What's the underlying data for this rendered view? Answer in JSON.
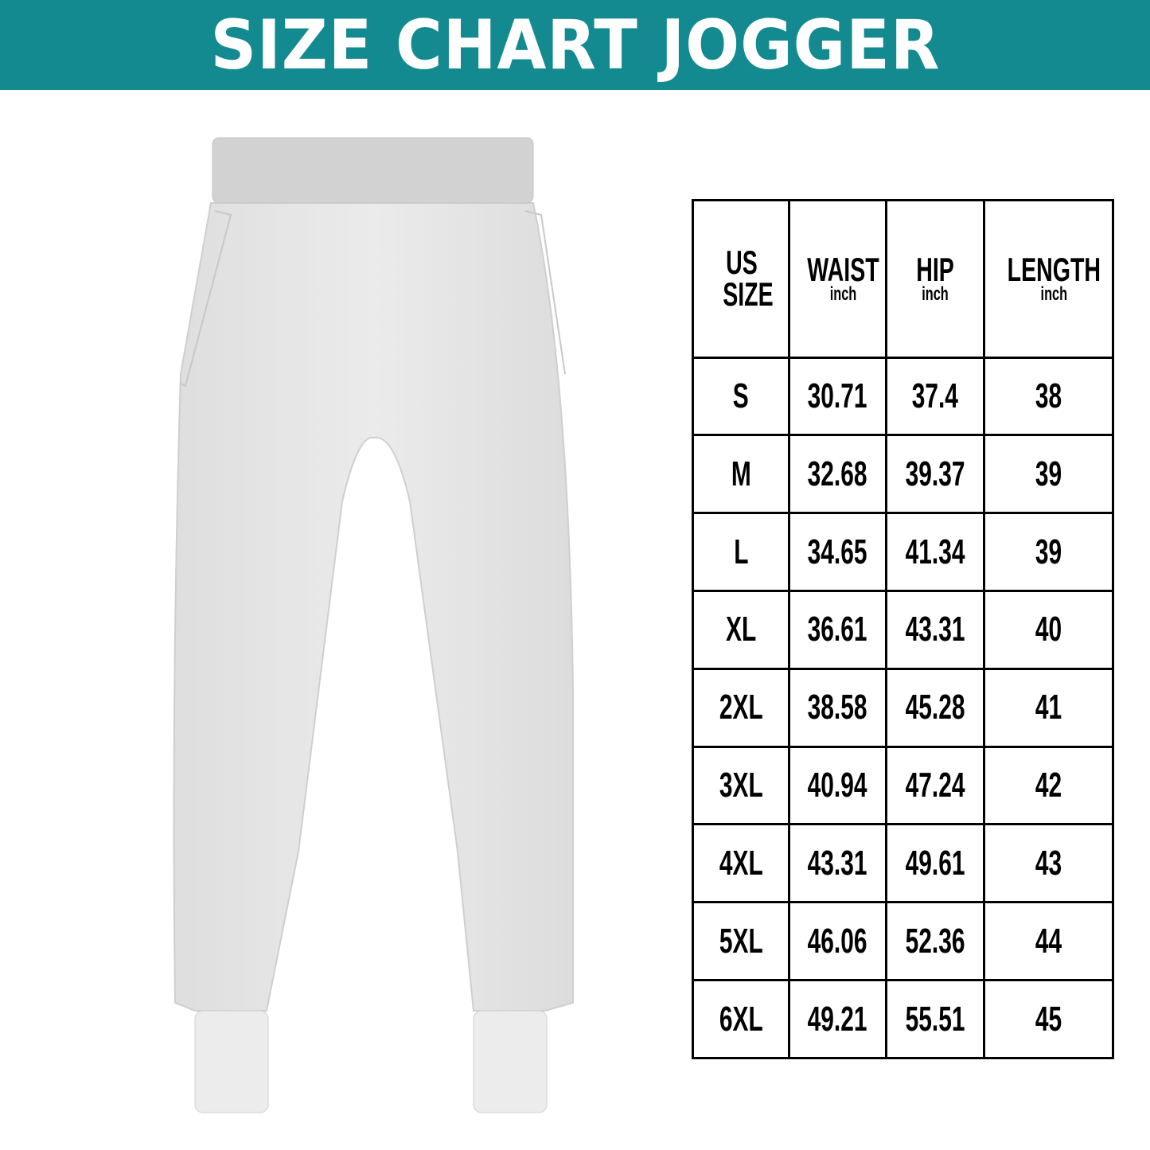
{
  "title": "SIZE CHART JOGGER",
  "colors": {
    "banner": "#138a90",
    "garment": "#e6e6e6"
  },
  "image": "jogger-pants-illustration",
  "table": {
    "headers": [
      {
        "label": "US SIZE",
        "unit": ""
      },
      {
        "label": "WAIST",
        "unit": "inch"
      },
      {
        "label": "HIP",
        "unit": "inch"
      },
      {
        "label": "LENGTH",
        "unit": "inch"
      }
    ],
    "rows": [
      [
        "S",
        "30.71",
        "37.4",
        "38"
      ],
      [
        "M",
        "32.68",
        "39.37",
        "39"
      ],
      [
        "L",
        "34.65",
        "41.34",
        "39"
      ],
      [
        "XL",
        "36.61",
        "43.31",
        "40"
      ],
      [
        "2XL",
        "38.58",
        "45.28",
        "41"
      ],
      [
        "3XL",
        "40.94",
        "47.24",
        "42"
      ],
      [
        "4XL",
        "43.31",
        "49.61",
        "43"
      ],
      [
        "5XL",
        "46.06",
        "52.36",
        "44"
      ],
      [
        "6XL",
        "49.21",
        "55.51",
        "45"
      ]
    ]
  }
}
